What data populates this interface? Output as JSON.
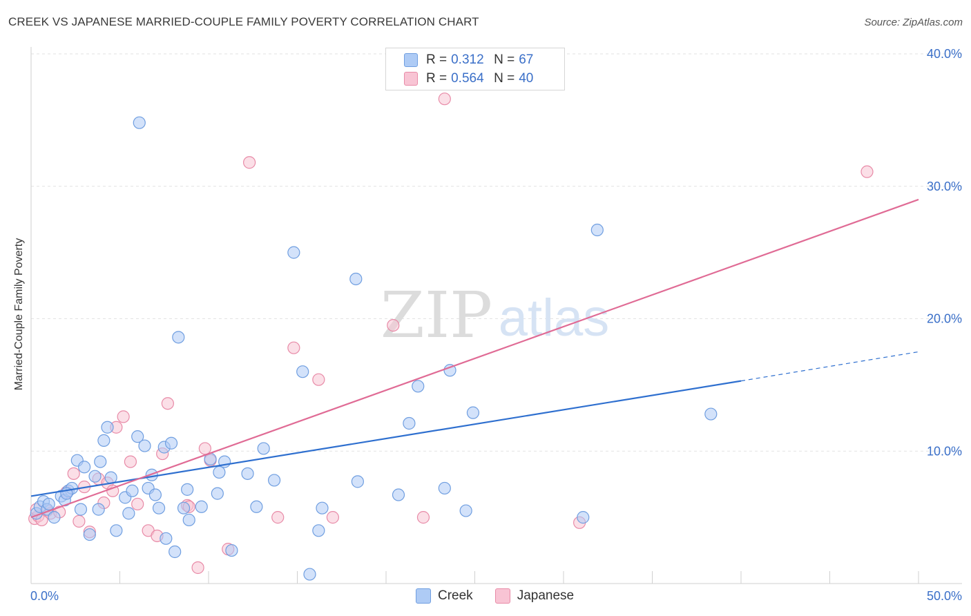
{
  "title": "CREEK VS JAPANESE MARRIED-COUPLE FAMILY POVERTY CORRELATION CHART",
  "source": "Source: ZipAtlas.com",
  "watermark": {
    "zip": "ZIP",
    "atlas": "atlas"
  },
  "legend": {
    "rows": [
      {
        "r_label": "R =",
        "r_value": "0.312",
        "n_label": "N =",
        "n_value": "67",
        "color": "#aecbf5",
        "border": "#6f9ee0"
      },
      {
        "r_label": "R =",
        "r_value": "0.564",
        "n_label": "N =",
        "n_value": "40",
        "color": "#f8c4d4",
        "border": "#e88aa7"
      }
    ]
  },
  "bottom_legend": {
    "creek": "Creek",
    "japanese": "Japanese"
  },
  "chart_data": {
    "type": "scatter",
    "title": "CREEK VS JAPANESE MARRIED-COUPLE FAMILY POVERTY CORRELATION CHART",
    "xlabel": "",
    "ylabel": "Married-Couple Family Poverty",
    "xlim": [
      0,
      50
    ],
    "ylim": [
      0,
      42
    ],
    "x_tick_labels": [
      "0.0%",
      "50.0%"
    ],
    "y_ticks": [
      10,
      20,
      30,
      40
    ],
    "y_tick_labels": [
      "10.0%",
      "20.0%",
      "30.0%",
      "40.0%"
    ],
    "grid": true,
    "series": [
      {
        "name": "Creek",
        "color": "#6f9ee0",
        "fill": "#aecbf5",
        "trend": {
          "x0": 0,
          "y0": 6.6,
          "x1": 40,
          "y1": 15.3,
          "dash_to_x": 50,
          "dash_to_y": 17.5,
          "color": "#2e6fcf"
        },
        "points": [
          [
            0.3,
            5.3
          ],
          [
            0.5,
            5.8
          ],
          [
            0.7,
            6.2
          ],
          [
            0.9,
            5.6
          ],
          [
            1.0,
            6.0
          ],
          [
            1.3,
            5.0
          ],
          [
            1.7,
            6.6
          ],
          [
            1.9,
            6.3
          ],
          [
            2.1,
            7.0
          ],
          [
            2.3,
            7.2
          ],
          [
            2.6,
            9.3
          ],
          [
            2.8,
            5.6
          ],
          [
            3.0,
            8.8
          ],
          [
            3.3,
            3.7
          ],
          [
            3.6,
            8.1
          ],
          [
            3.8,
            5.6
          ],
          [
            3.9,
            9.2
          ],
          [
            4.1,
            10.8
          ],
          [
            4.3,
            11.8
          ],
          [
            4.5,
            8.0
          ],
          [
            4.8,
            4.0
          ],
          [
            5.3,
            6.5
          ],
          [
            5.5,
            5.3
          ],
          [
            5.7,
            7.0
          ],
          [
            6.0,
            11.1
          ],
          [
            6.4,
            10.4
          ],
          [
            6.6,
            7.2
          ],
          [
            6.8,
            8.2
          ],
          [
            7.0,
            6.7
          ],
          [
            7.2,
            5.7
          ],
          [
            7.5,
            10.3
          ],
          [
            7.6,
            3.4
          ],
          [
            7.9,
            10.6
          ],
          [
            8.1,
            2.4
          ],
          [
            8.3,
            18.6
          ],
          [
            8.6,
            5.7
          ],
          [
            8.9,
            4.8
          ],
          [
            8.8,
            7.1
          ],
          [
            9.6,
            5.8
          ],
          [
            10.1,
            9.4
          ],
          [
            10.5,
            6.8
          ],
          [
            10.6,
            8.4
          ],
          [
            10.9,
            9.2
          ],
          [
            11.3,
            2.5
          ],
          [
            12.2,
            8.3
          ],
          [
            12.7,
            5.8
          ],
          [
            13.1,
            10.2
          ],
          [
            13.7,
            7.8
          ],
          [
            14.8,
            25.0
          ],
          [
            15.3,
            16.0
          ],
          [
            15.7,
            0.7
          ],
          [
            16.2,
            4.0
          ],
          [
            16.4,
            5.7
          ],
          [
            18.3,
            23.0
          ],
          [
            18.4,
            7.7
          ],
          [
            20.7,
            6.7
          ],
          [
            21.3,
            12.1
          ],
          [
            21.8,
            14.9
          ],
          [
            23.3,
            7.2
          ],
          [
            23.6,
            16.1
          ],
          [
            24.9,
            12.9
          ],
          [
            24.5,
            5.5
          ],
          [
            6.1,
            34.8
          ],
          [
            31.9,
            26.7
          ],
          [
            38.3,
            12.8
          ],
          [
            31.1,
            5.0
          ],
          [
            2.0,
            6.8
          ]
        ]
      },
      {
        "name": "Japanese",
        "color": "#e88aa7",
        "fill": "#f8c4d4",
        "trend": {
          "x0": 0,
          "y0": 5.0,
          "x1": 50,
          "y1": 29.0,
          "color": "#e06b95"
        },
        "points": [
          [
            0.2,
            4.9
          ],
          [
            0.4,
            5.1
          ],
          [
            0.6,
            4.8
          ],
          [
            0.9,
            5.5
          ],
          [
            1.1,
            5.3
          ],
          [
            1.6,
            5.4
          ],
          [
            2.0,
            6.9
          ],
          [
            2.4,
            8.3
          ],
          [
            2.7,
            4.7
          ],
          [
            3.0,
            7.3
          ],
          [
            3.3,
            3.9
          ],
          [
            3.8,
            7.9
          ],
          [
            4.1,
            6.1
          ],
          [
            4.3,
            7.6
          ],
          [
            4.6,
            7.0
          ],
          [
            4.8,
            11.8
          ],
          [
            5.2,
            12.6
          ],
          [
            5.6,
            9.2
          ],
          [
            6.0,
            6.0
          ],
          [
            6.6,
            4.0
          ],
          [
            7.1,
            3.6
          ],
          [
            7.4,
            9.8
          ],
          [
            7.7,
            13.6
          ],
          [
            8.8,
            5.9
          ],
          [
            9.4,
            1.2
          ],
          [
            9.8,
            10.2
          ],
          [
            10.1,
            9.3
          ],
          [
            11.1,
            2.6
          ],
          [
            12.3,
            31.8
          ],
          [
            13.9,
            5.0
          ],
          [
            14.8,
            17.8
          ],
          [
            16.2,
            15.4
          ],
          [
            17.0,
            5.0
          ],
          [
            20.4,
            19.5
          ],
          [
            22.1,
            5.0
          ],
          [
            23.3,
            36.6
          ],
          [
            30.9,
            4.6
          ],
          [
            47.1,
            31.1
          ],
          [
            0.3,
            5.6
          ],
          [
            8.9,
            5.8
          ]
        ]
      }
    ]
  }
}
